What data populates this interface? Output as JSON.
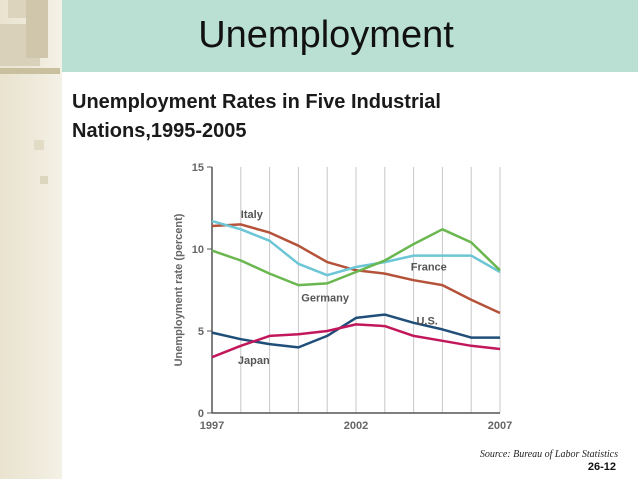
{
  "slide": {
    "title": "Unemployment",
    "subtitle": "Unemployment Rates in Five Industrial Nations,1995-2005",
    "source": "Source: Bureau of Labor Statistics",
    "slide_number": "26-12"
  },
  "colors": {
    "title_band": "#b9e0d3",
    "left_bar": "#ece6d2"
  },
  "chart_data": {
    "type": "line",
    "title": "",
    "xlabel": "",
    "ylabel": "Unemployment rate (percent)",
    "xlim": [
      1997,
      2007
    ],
    "ylim": [
      0,
      15
    ],
    "x_ticks": [
      "1997",
      "2002",
      "2007"
    ],
    "y_ticks": [
      "0",
      "5",
      "10",
      "15"
    ],
    "grid": "vertical",
    "x": [
      1997,
      1998,
      1999,
      2000,
      2001,
      2002,
      2003,
      2004,
      2005,
      2006,
      2007
    ],
    "series": [
      {
        "name": "Italy",
        "color": "#b5533a",
        "label_year": 1998.0,
        "label_value": 11.9,
        "values": [
          11.4,
          11.5,
          11.0,
          10.2,
          9.2,
          8.7,
          8.5,
          8.1,
          7.8,
          6.9,
          6.1
        ]
      },
      {
        "name": "France",
        "color": "#6cc6d6",
        "label_year": 2003.9,
        "label_value": 8.7,
        "values": [
          11.7,
          11.2,
          10.5,
          9.1,
          8.4,
          8.9,
          9.2,
          9.6,
          9.6,
          9.6,
          8.6
        ]
      },
      {
        "name": "Germany",
        "color": "#6ab74f",
        "label_year": 2000.1,
        "label_value": 6.8,
        "values": [
          9.9,
          9.3,
          8.5,
          7.8,
          7.9,
          8.6,
          9.3,
          10.3,
          11.2,
          10.4,
          8.7
        ]
      },
      {
        "name": "U.S.",
        "color": "#1f4e79",
        "label_year": 2004.1,
        "label_value": 5.4,
        "values": [
          4.9,
          4.5,
          4.2,
          4.0,
          4.7,
          5.8,
          6.0,
          5.5,
          5.1,
          4.6,
          4.6
        ]
      },
      {
        "name": "Japan",
        "color": "#c2185b",
        "label_year": 1997.9,
        "label_value": 3.0,
        "values": [
          3.4,
          4.1,
          4.7,
          4.8,
          5.0,
          5.4,
          5.3,
          4.7,
          4.4,
          4.1,
          3.9
        ]
      }
    ]
  }
}
